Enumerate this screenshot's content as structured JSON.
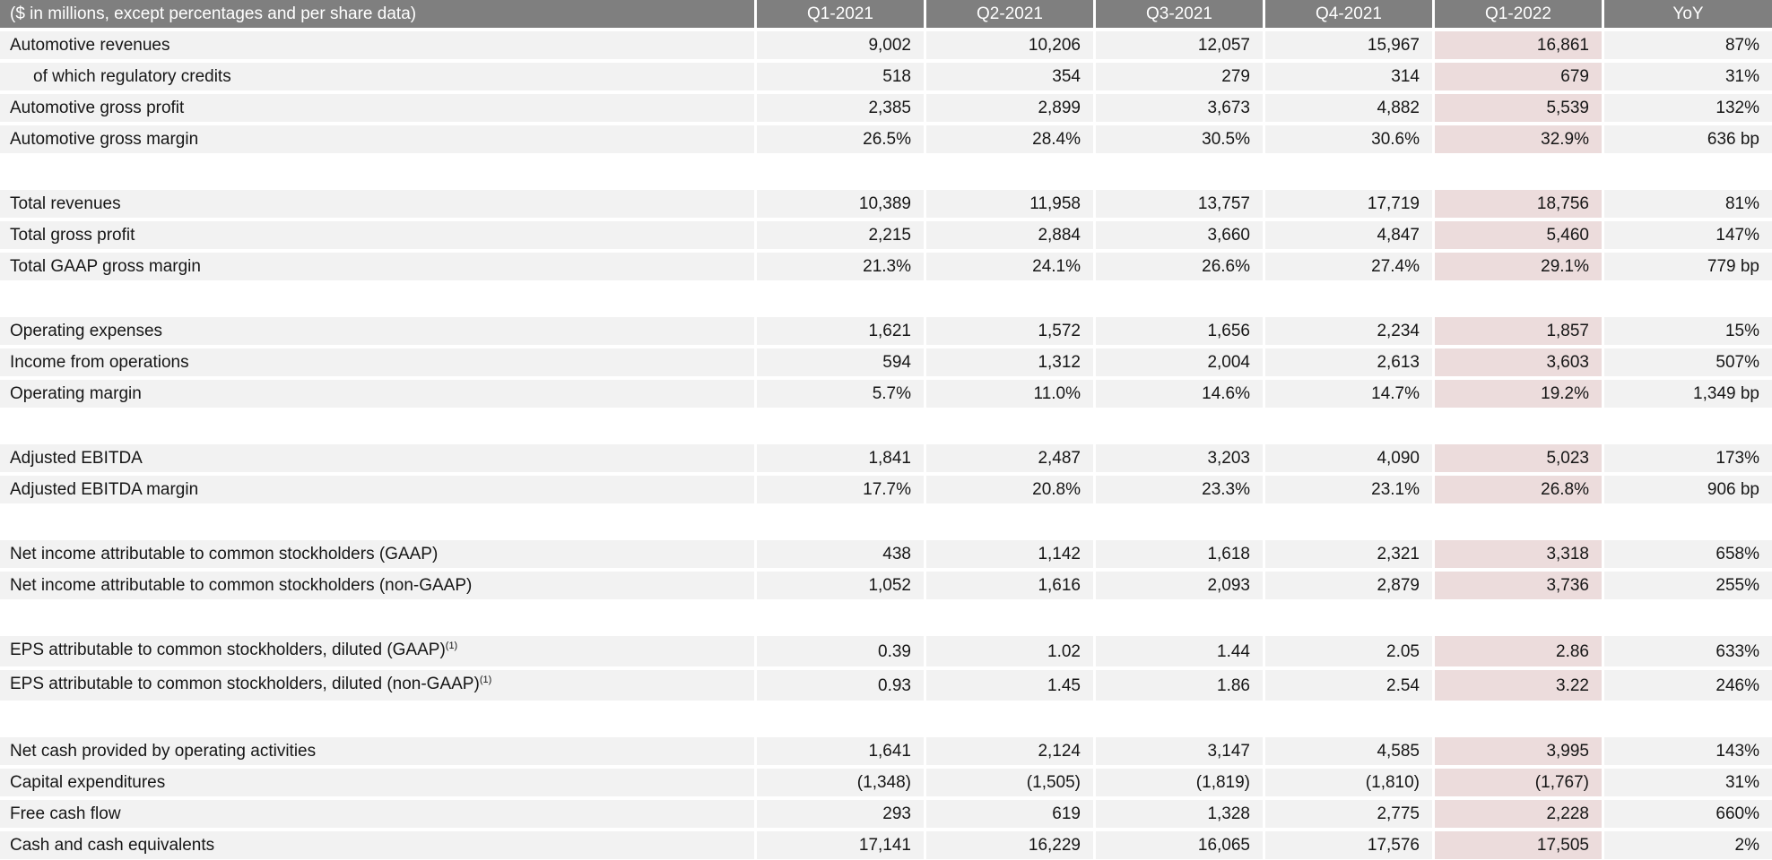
{
  "table": {
    "columns": [
      "($ in millions, except percentages and per share data)",
      "Q1-2021",
      "Q2-2021",
      "Q3-2021",
      "Q4-2021",
      "Q1-2022",
      "YoY"
    ],
    "column_keys": [
      "metric",
      "q1-2021",
      "q2-2021",
      "q3-2021",
      "q4-2021",
      "q1-2022",
      "yoy"
    ],
    "highlight_column": "Q1-2022",
    "highlight_value_index": 4,
    "colors": {
      "header_bg": "#7f7f7f",
      "header_text": "#ffffff",
      "row_bg": "#f2f2f2",
      "highlight_bg": "#ecdcdc",
      "body_text": "#161616"
    },
    "rows": [
      {
        "label": "Automotive revenues",
        "values": [
          "9,002",
          "10,206",
          "12,057",
          "15,967",
          "16,861",
          "87%"
        ]
      },
      {
        "label": "of which regulatory credits",
        "indent": true,
        "values": [
          "518",
          "354",
          "279",
          "314",
          "679",
          "31%"
        ]
      },
      {
        "label": "Automotive gross profit",
        "values": [
          "2,385",
          "2,899",
          "3,673",
          "4,882",
          "5,539",
          "132%"
        ]
      },
      {
        "label": "Automotive gross margin",
        "values": [
          "26.5%",
          "28.4%",
          "30.5%",
          "30.6%",
          "32.9%",
          "636 bp"
        ]
      },
      {
        "spacer": true
      },
      {
        "label": "Total revenues",
        "values": [
          "10,389",
          "11,958",
          "13,757",
          "17,719",
          "18,756",
          "81%"
        ]
      },
      {
        "label": "Total gross profit",
        "values": [
          "2,215",
          "2,884",
          "3,660",
          "4,847",
          "5,460",
          "147%"
        ]
      },
      {
        "label": "Total GAAP gross margin",
        "values": [
          "21.3%",
          "24.1%",
          "26.6%",
          "27.4%",
          "29.1%",
          "779 bp"
        ]
      },
      {
        "spacer": true
      },
      {
        "label": "Operating expenses",
        "values": [
          "1,621",
          "1,572",
          "1,656",
          "2,234",
          "1,857",
          "15%"
        ]
      },
      {
        "label": "Income from operations",
        "values": [
          "594",
          "1,312",
          "2,004",
          "2,613",
          "3,603",
          "507%"
        ]
      },
      {
        "label": "Operating margin",
        "values": [
          "5.7%",
          "11.0%",
          "14.6%",
          "14.7%",
          "19.2%",
          "1,349 bp"
        ]
      },
      {
        "spacer": true
      },
      {
        "label": "Adjusted EBITDA",
        "values": [
          "1,841",
          "2,487",
          "3,203",
          "4,090",
          "5,023",
          "173%"
        ]
      },
      {
        "label": "Adjusted EBITDA margin",
        "values": [
          "17.7%",
          "20.8%",
          "23.3%",
          "23.1%",
          "26.8%",
          "906 bp"
        ]
      },
      {
        "spacer": true
      },
      {
        "label": "Net income attributable to common stockholders (GAAP)",
        "values": [
          "438",
          "1,142",
          "1,618",
          "2,321",
          "3,318",
          "658%"
        ]
      },
      {
        "label": "Net income attributable to common stockholders (non-GAAP)",
        "values": [
          "1,052",
          "1,616",
          "2,093",
          "2,879",
          "3,736",
          "255%"
        ]
      },
      {
        "spacer": true
      },
      {
        "label": "EPS attributable to common stockholders, diluted (GAAP)",
        "sup": "(1)",
        "values": [
          "0.39",
          "1.02",
          "1.44",
          "2.05",
          "2.86",
          "633%"
        ]
      },
      {
        "label": "EPS attributable to common stockholders, diluted (non-GAAP)",
        "sup": "(1)",
        "values": [
          "0.93",
          "1.45",
          "1.86",
          "2.54",
          "3.22",
          "246%"
        ]
      },
      {
        "spacer": true
      },
      {
        "label": "Net cash provided by operating activities",
        "values": [
          "1,641",
          "2,124",
          "3,147",
          "4,585",
          "3,995",
          "143%"
        ]
      },
      {
        "label": "Capital expenditures",
        "values": [
          "(1,348)",
          "(1,505)",
          "(1,819)",
          "(1,810)",
          "(1,767)",
          "31%"
        ]
      },
      {
        "label": "Free cash flow",
        "values": [
          "293",
          "619",
          "1,328",
          "2,775",
          "2,228",
          "660%"
        ]
      },
      {
        "label": "Cash and cash equivalents",
        "values": [
          "17,141",
          "16,229",
          "16,065",
          "17,576",
          "17,505",
          "2%"
        ]
      }
    ]
  }
}
